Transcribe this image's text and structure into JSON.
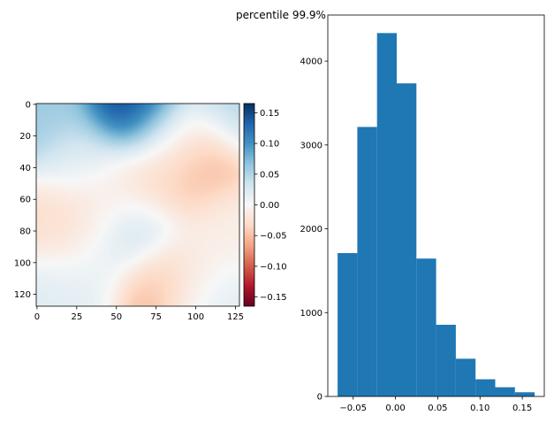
{
  "suptitle": "percentile 99.9%",
  "colors": {
    "histogram_fill": "#1f77b4",
    "colormap": "RdBu"
  },
  "chart_data": [
    {
      "type": "heatmap",
      "title": "",
      "description": "128x128 smooth random field rendered with RdBu colormap",
      "x_ticks": [
        "0",
        "25",
        "50",
        "75",
        "100",
        "125"
      ],
      "y_ticks": [
        "0",
        "20",
        "40",
        "60",
        "80",
        "100",
        "120"
      ],
      "xlim": [
        0,
        127
      ],
      "ylim": [
        0,
        127
      ],
      "colorbar": {
        "ticks": [
          "0.15",
          "0.10",
          "0.05",
          "0.00",
          "−0.05",
          "−0.10",
          "−0.15"
        ],
        "range": [
          -0.165,
          0.165
        ]
      },
      "features": [
        {
          "x": 60,
          "y": 4,
          "value": 0.16
        },
        {
          "x": 5,
          "y": 5,
          "value": 0.06
        },
        {
          "x": 125,
          "y": 5,
          "value": 0.05
        },
        {
          "x": 30,
          "y": 35,
          "value": 0.02
        },
        {
          "x": 85,
          "y": 20,
          "value": 0.01
        },
        {
          "x": 105,
          "y": 35,
          "value": -0.065
        },
        {
          "x": 85,
          "y": 45,
          "value": -0.04
        },
        {
          "x": 60,
          "y": 52,
          "value": -0.03
        },
        {
          "x": 15,
          "y": 78,
          "value": -0.03
        },
        {
          "x": 35,
          "y": 72,
          "value": -0.025
        },
        {
          "x": 58,
          "y": 80,
          "value": 0.055
        },
        {
          "x": 75,
          "y": 115,
          "value": -0.06
        },
        {
          "x": 95,
          "y": 105,
          "value": -0.015
        },
        {
          "x": 120,
          "y": 75,
          "value": -0.01
        },
        {
          "x": 30,
          "y": 108,
          "value": 0.015
        },
        {
          "x": 110,
          "y": 125,
          "value": 0.02
        },
        {
          "x": 5,
          "y": 125,
          "value": 0.02
        }
      ]
    },
    {
      "type": "bar",
      "subtype": "histogram",
      "title": "",
      "xlabel": "",
      "ylabel": "",
      "bin_edges": [
        -0.0684,
        -0.0451,
        -0.0218,
        0.0015,
        0.0248,
        0.0481,
        0.0714,
        0.0947,
        0.118,
        0.1413,
        0.1646
      ],
      "values": [
        1710,
        3215,
        4335,
        3735,
        1645,
        855,
        450,
        205,
        110,
        50
      ],
      "xlim": [
        -0.08,
        0.176
      ],
      "ylim": [
        0,
        4550
      ],
      "x_ticks": [
        -0.05,
        0.0,
        0.05,
        0.1,
        0.15
      ],
      "x_tick_labels": [
        "−0.05",
        "0.00",
        "0.05",
        "0.10",
        "0.15"
      ],
      "y_ticks": [
        0,
        1000,
        2000,
        3000,
        4000
      ],
      "y_tick_labels": [
        "0",
        "1000",
        "2000",
        "3000",
        "4000"
      ]
    }
  ]
}
